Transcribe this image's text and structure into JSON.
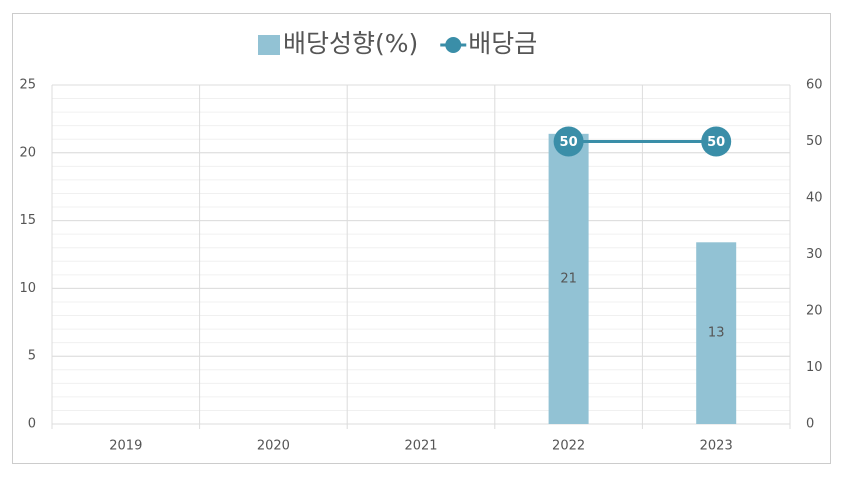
{
  "chart_data": {
    "type": "bar-line",
    "categories": [
      "2019",
      "2020",
      "2021",
      "2022",
      "2023"
    ],
    "series": [
      {
        "name": "배당성향(%)",
        "type": "bar",
        "color": "#92c2d4",
        "axis": "y",
        "values": [
          null,
          null,
          null,
          21.4,
          13.4
        ],
        "value_labels": [
          null,
          null,
          null,
          "21",
          "13"
        ]
      },
      {
        "name": "배당금",
        "type": "line",
        "color": "#3a8ea8",
        "axis": "y2",
        "values": [
          null,
          null,
          null,
          50,
          50
        ]
      }
    ],
    "ylim": [
      0,
      25
    ],
    "yticks": [
      0,
      5,
      10,
      15,
      20,
      25
    ],
    "y2lim": [
      0,
      60
    ],
    "y2ticks": [
      0,
      10,
      20,
      30,
      40,
      50,
      60
    ],
    "grid": true,
    "legend": "top"
  }
}
